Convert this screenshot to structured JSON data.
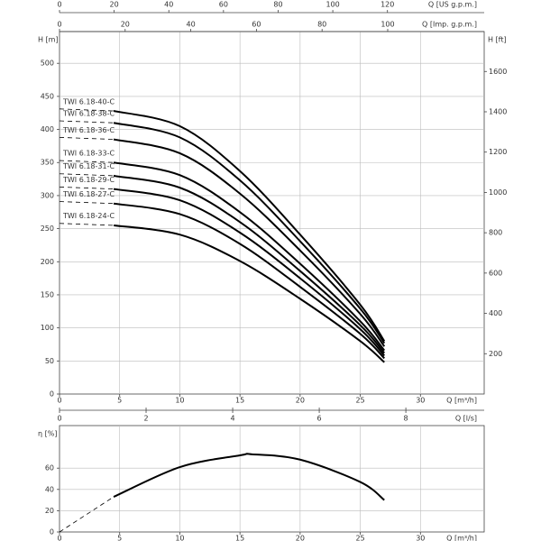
{
  "chart_data": [
    {
      "type": "line",
      "x_axis_label": "Q [m³/h]",
      "y_axis_label": "H [m]",
      "y2_axis_label": "H [ft]",
      "top_axes": [
        {
          "label": "Q [US g.p.m.]",
          "lim": [
            0,
            155.4
          ],
          "ticks": [
            0,
            20,
            40,
            60,
            80,
            100,
            120
          ]
        },
        {
          "label": "Q [Imp. g.p.m.]",
          "lim": [
            0,
            129.4
          ],
          "ticks": [
            0,
            20,
            40,
            60,
            80,
            100
          ]
        }
      ],
      "xlim": [
        0,
        35.3
      ],
      "xticks": [
        0,
        5,
        10,
        15,
        20,
        25,
        30
      ],
      "ylim": [
        0,
        548
      ],
      "yticks": [
        0,
        50,
        100,
        150,
        200,
        250,
        300,
        350,
        400,
        450,
        500
      ],
      "y2lim": [
        0,
        1798
      ],
      "y2ticks": [
        200,
        400,
        600,
        800,
        1000,
        1200,
        1400,
        1600
      ],
      "grid": true,
      "color": "#000000",
      "x": [
        0,
        4.5,
        10,
        15,
        20,
        25,
        27
      ],
      "series": [
        {
          "name": "TWI 6.18-40-C",
          "values": [
            431,
            428,
            405,
            337,
            241,
            135,
            80
          ]
        },
        {
          "name": "TWI 6.18-38-C",
          "values": [
            413,
            410,
            388,
            323,
            231,
            129,
            77
          ]
        },
        {
          "name": "TWI 6.18-36-C",
          "values": [
            388,
            385,
            364,
            303,
            217,
            121,
            72
          ]
        },
        {
          "name": "TWI 6.18-33-C",
          "values": [
            353,
            350,
            331,
            275,
            197,
            110,
            66
          ]
        },
        {
          "name": "TWI 6.18-31-C",
          "values": [
            333,
            330,
            312,
            260,
            186,
            104,
            62
          ]
        },
        {
          "name": "TWI 6.18-29-C",
          "values": [
            313,
            310,
            293,
            244,
            175,
            98,
            58
          ]
        },
        {
          "name": "TWI 6.18-27-C",
          "values": [
            291,
            288,
            272,
            227,
            162,
            91,
            54
          ]
        },
        {
          "name": "TWI 6.18-24-C",
          "values": [
            258,
            255,
            241,
            201,
            144,
            80,
            48
          ]
        }
      ]
    },
    {
      "type": "line",
      "x_axis_label": "Q [m³/h]",
      "y_axis_label": "η [%]",
      "top_axes": [
        {
          "label": "Q [l/s]",
          "lim": [
            0,
            9.81
          ],
          "ticks": [
            0,
            2,
            4,
            6,
            8
          ]
        }
      ],
      "xlim": [
        0,
        35.3
      ],
      "xticks": [
        0,
        5,
        10,
        15,
        20,
        25,
        30
      ],
      "ylim": [
        0,
        100
      ],
      "yticks": [
        0,
        20,
        40,
        60
      ],
      "grid": true,
      "color": "#000000",
      "x": [
        0,
        4.5,
        10,
        15,
        16,
        20,
        25,
        27
      ],
      "series": [
        {
          "values": [
            0,
            33,
            61,
            72,
            73,
            68,
            47,
            30
          ]
        }
      ]
    }
  ]
}
